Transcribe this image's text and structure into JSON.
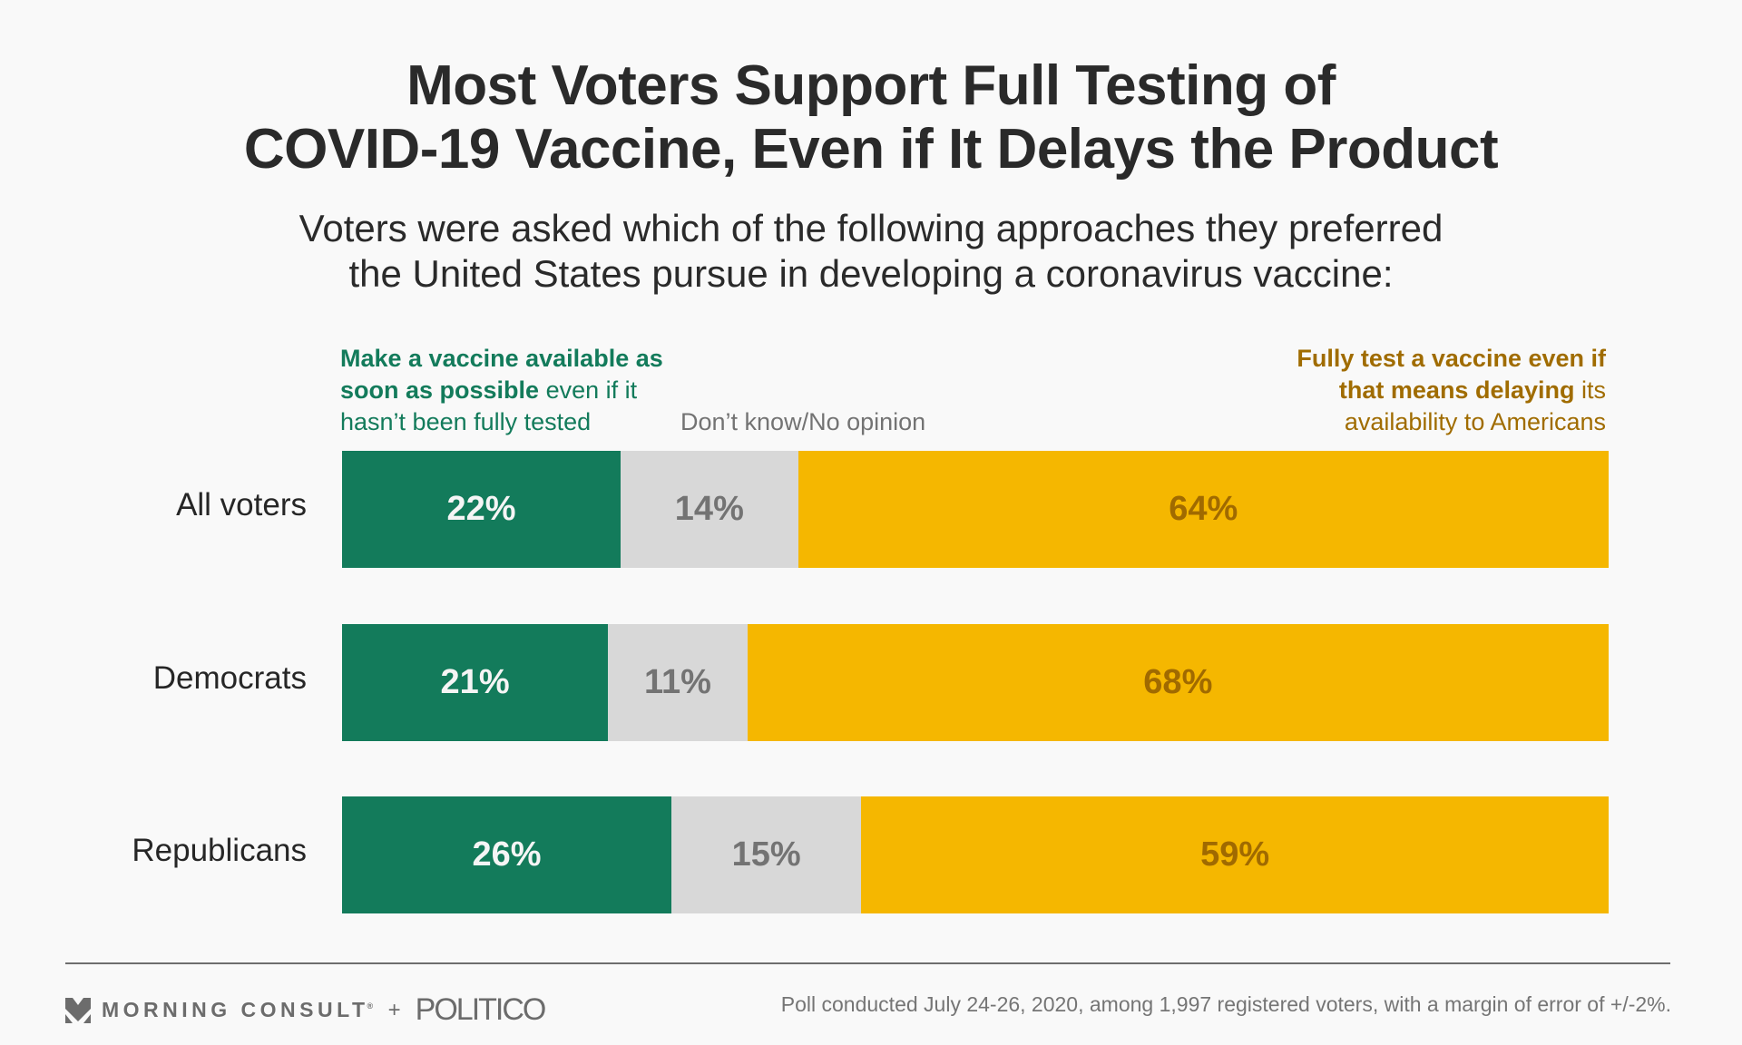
{
  "title": {
    "line1": "Most Voters Support Full Testing of",
    "line2": "COVID-19 Vaccine, Even if It Delays the Product"
  },
  "subtitle": {
    "line1": "Voters were asked which of the following approaches they preferred",
    "line2": "the United States pursue in developing a coronavirus vaccine:"
  },
  "legend": {
    "left": {
      "bold1": "Make a vaccine available as",
      "bold2": "soon as possible",
      "rest2": " even if it",
      "line3": "hasn’t been fully tested"
    },
    "middle": "Don’t know/No opinion",
    "right": {
      "bold1": "Fully test a vaccine even if",
      "bold2": "that means delaying",
      "rest2": " its",
      "line3": "availability to Americans"
    }
  },
  "colors": {
    "asap": "#137b5b",
    "dont_know": "#d8d8d8",
    "full_test": "#f5b700",
    "asap_label": "#f5f5f5",
    "dont_know_label": "#737373",
    "full_test_label": "#a06a00"
  },
  "chart_data": {
    "type": "bar",
    "orientation": "horizontal-stacked-100",
    "title": "Most Voters Support Full Testing of COVID-19 Vaccine, Even if It Delays the Product",
    "subtitle": "Voters were asked which of the following approaches they preferred the United States pursue in developing a coronavirus vaccine:",
    "categories": [
      "All voters",
      "Democrats",
      "Republicans"
    ],
    "series": [
      {
        "name": "Make a vaccine available as soon as possible even if it hasn’t been fully tested",
        "values": [
          22,
          21,
          26
        ]
      },
      {
        "name": "Don’t know/No opinion",
        "values": [
          14,
          11,
          15
        ]
      },
      {
        "name": "Fully test a vaccine even if that means delaying its availability to Americans",
        "values": [
          64,
          68,
          59
        ]
      }
    ],
    "value_format": "{v}%",
    "xlim": [
      0,
      100
    ],
    "legend_position": "top"
  },
  "footer": {
    "brand1": "MORNING CONSULT",
    "registered": "®",
    "plus": "+",
    "brand2": "POLITICO",
    "note": "Poll conducted July 24-26, 2020, among 1,997 registered voters, with a margin of error of +/-2%."
  }
}
